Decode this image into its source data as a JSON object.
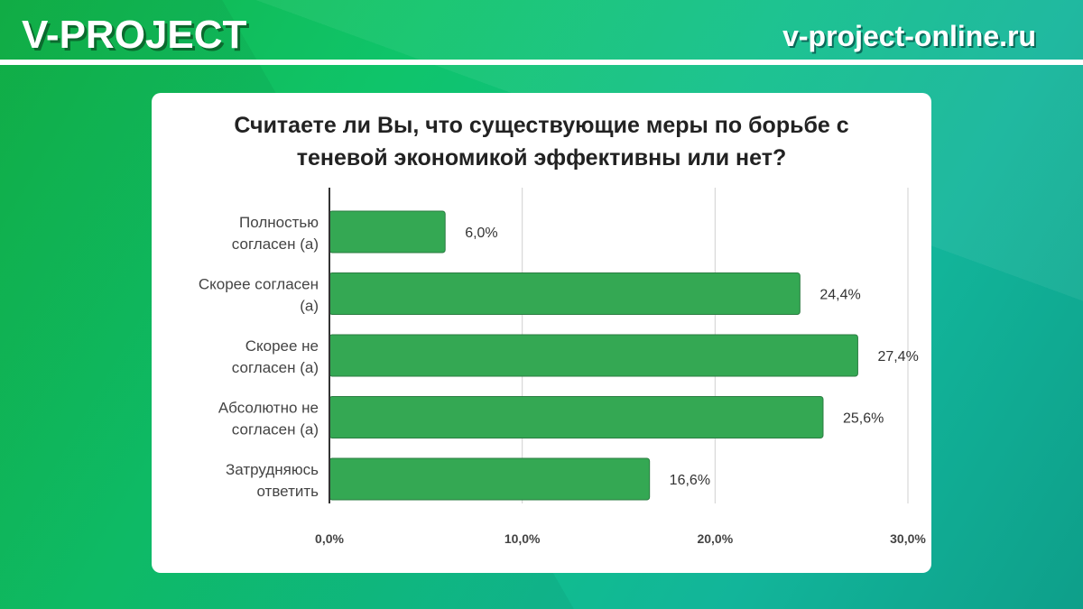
{
  "header": {
    "brand": "V-PROJECT",
    "site": "v-project-online.ru"
  },
  "colors": {
    "bar": "#34a853",
    "grid": "#d0d0d0"
  },
  "chart_data": {
    "type": "bar",
    "orientation": "horizontal",
    "title_line1": "Считаете ли Вы, что существующие меры по борьбе с",
    "title_line2": "теневой экономикой эффективны или нет?",
    "categories": [
      [
        "Полностью",
        "согласен (а)"
      ],
      [
        "Скорее согласен",
        "(а)"
      ],
      [
        "Скорее не",
        "согласен (а)"
      ],
      [
        "Абсолютно не",
        "согласен (а)"
      ],
      [
        "Затрудняюсь",
        "ответить"
      ]
    ],
    "values": [
      6.0,
      24.4,
      27.4,
      25.6,
      16.6
    ],
    "value_labels": [
      "6,0%",
      "24,4%",
      "27,4%",
      "25,6%",
      "16,6%"
    ],
    "xticks": [
      0,
      10,
      20,
      30
    ],
    "xtick_labels": [
      "0,0%",
      "10,0%",
      "20,0%",
      "30,0%"
    ],
    "xlim": [
      0,
      30
    ],
    "grid": true
  }
}
